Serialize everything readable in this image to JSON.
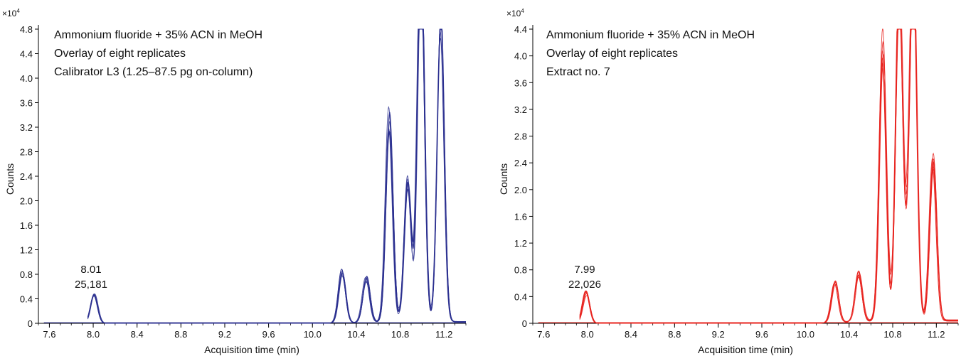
{
  "chart_data": [
    {
      "type": "line",
      "title": "",
      "color": "#2a2f8f",
      "annotations": [
        "Ammonium fluoride + 35% ACN in MeOH",
        "Overlay of eight replicates",
        "Calibrator L3 (1.25–87.5 pg on-column)"
      ],
      "multiplier": "×10",
      "multiplier_exp": "4",
      "xlabel": "Acquisition time (min)",
      "ylabel": "Counts",
      "xlim": [
        7.5,
        11.4
      ],
      "ylim": [
        0,
        4.8
      ],
      "x_ticks": [
        "7.6",
        "8.0",
        "8.4",
        "8.8",
        "9.2",
        "9.6",
        "10.0",
        "10.4",
        "10.8",
        "11.2"
      ],
      "y_ticks": [
        "0",
        "0.4",
        "0.8",
        "1.2",
        "1.6",
        "2.0",
        "2.4",
        "2.8",
        "3.2",
        "3.6",
        "4.0",
        "4.4",
        "4.8"
      ],
      "peak_label": {
        "time": "8.01",
        "area": "25,181",
        "x": 8.01,
        "y": 0.48
      },
      "replicates": 8,
      "peaks": [
        {
          "x": 8.01,
          "y": 0.48
        },
        {
          "x": 10.27,
          "y": 0.82
        },
        {
          "x": 10.49,
          "y": 0.7
        },
        {
          "x": 10.7,
          "y": 3.3
        },
        {
          "x": 10.87,
          "y": 1.75
        },
        {
          "x": 10.87,
          "y": 0.55
        },
        {
          "x": 10.99,
          "y": 4.45
        },
        {
          "x": 10.99,
          "y": 1.72
        },
        {
          "x": 11.17,
          "y": 3.0
        },
        {
          "x": 11.17,
          "y": 2.0
        }
      ]
    },
    {
      "type": "line",
      "title": "",
      "color": "#e8231e",
      "annotations": [
        "Ammonium fluoride + 35% ACN in MeOH",
        "Overlay of eight replicates",
        "Extract no. 7"
      ],
      "multiplier": "×10",
      "multiplier_exp": "4",
      "xlabel": "Acquisition time (min)",
      "ylabel": "Counts",
      "xlim": [
        7.5,
        11.4
      ],
      "ylim": [
        0,
        4.4
      ],
      "x_ticks": [
        "7.6",
        "8.0",
        "8.4",
        "8.8",
        "9.2",
        "9.6",
        "10.0",
        "10.4",
        "10.8",
        "11.2"
      ],
      "y_ticks": [
        "0",
        "0.4",
        "0.8",
        "1.2",
        "1.6",
        "2.0",
        "2.4",
        "2.8",
        "3.2",
        "3.6",
        "4.0",
        "4.4"
      ],
      "peak_label": {
        "time": "7.99",
        "area": "22,026",
        "x": 7.99,
        "y": 0.45
      },
      "replicates": 8,
      "peaks": [
        {
          "x": 7.99,
          "y": 0.45
        },
        {
          "x": 10.27,
          "y": 0.58
        },
        {
          "x": 10.49,
          "y": 0.7
        },
        {
          "x": 10.71,
          "y": 4.08
        },
        {
          "x": 10.86,
          "y": 3.8
        },
        {
          "x": 10.86,
          "y": 1.2
        },
        {
          "x": 10.94,
          "y": 0.6
        },
        {
          "x": 10.99,
          "y": 3.8
        },
        {
          "x": 10.99,
          "y": 1.5
        },
        {
          "x": 11.17,
          "y": 2.4
        }
      ]
    }
  ]
}
